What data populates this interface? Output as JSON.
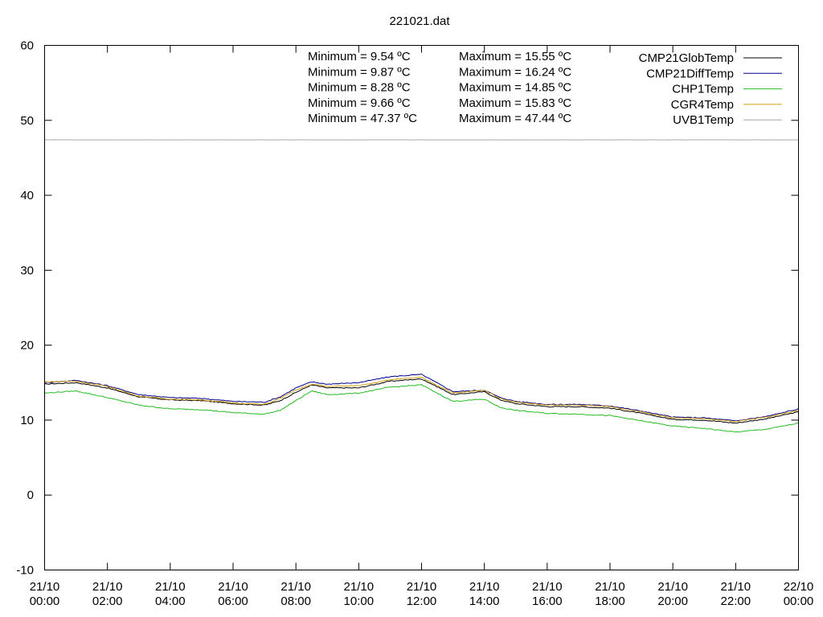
{
  "chart_data": {
    "type": "line",
    "title": "221021.dat",
    "xlabel": "",
    "ylabel": "",
    "ylim": [
      -10,
      60
    ],
    "yticks": [
      -10,
      0,
      10,
      20,
      30,
      40,
      50,
      60
    ],
    "xlim": [
      "21/10 00:00",
      "22/10 00:00"
    ],
    "xticks": [
      {
        "h": 0,
        "top": "21/10",
        "bottom": "00:00"
      },
      {
        "h": 2,
        "top": "21/10",
        "bottom": "02:00"
      },
      {
        "h": 4,
        "top": "21/10",
        "bottom": "04:00"
      },
      {
        "h": 6,
        "top": "21/10",
        "bottom": "06:00"
      },
      {
        "h": 8,
        "top": "21/10",
        "bottom": "08:00"
      },
      {
        "h": 10,
        "top": "21/10",
        "bottom": "10:00"
      },
      {
        "h": 12,
        "top": "21/10",
        "bottom": "12:00"
      },
      {
        "h": 14,
        "top": "21/10",
        "bottom": "14:00"
      },
      {
        "h": 16,
        "top": "21/10",
        "bottom": "16:00"
      },
      {
        "h": 18,
        "top": "21/10",
        "bottom": "18:00"
      },
      {
        "h": 20,
        "top": "21/10",
        "bottom": "20:00"
      },
      {
        "h": 22,
        "top": "21/10",
        "bottom": "22:00"
      },
      {
        "h": 24,
        "top": "22/10",
        "bottom": "00:00"
      }
    ],
    "grid": false,
    "legend_position": "top-right",
    "x": [
      0,
      1,
      2,
      3,
      4,
      5,
      6,
      7,
      7.5,
      8,
      8.5,
      9,
      10,
      11,
      12,
      13,
      14,
      14.5,
      15,
      16,
      17,
      18,
      19,
      20,
      21,
      22,
      23,
      24
    ],
    "series": [
      {
        "name": "CMP21GlobTemp",
        "color": "#000000",
        "values": [
          14.8,
          15.0,
          14.3,
          13.1,
          12.7,
          12.6,
          12.2,
          12.0,
          12.6,
          13.7,
          14.7,
          14.3,
          14.3,
          15.2,
          15.5,
          13.4,
          13.8,
          12.7,
          12.2,
          11.8,
          11.8,
          11.6,
          10.9,
          10.1,
          10.0,
          9.6,
          10.2,
          11.1
        ]
      },
      {
        "name": "CMP21DiffTemp",
        "color": "#00008b",
        "values": [
          15.0,
          15.3,
          14.6,
          13.4,
          13.0,
          12.9,
          12.5,
          12.4,
          13.1,
          14.3,
          15.1,
          14.8,
          15.0,
          15.8,
          16.1,
          13.8,
          14.0,
          13.0,
          12.5,
          12.1,
          12.1,
          11.9,
          11.2,
          10.4,
          10.3,
          9.9,
          10.5,
          11.5
        ]
      },
      {
        "name": "CHP1Temp",
        "color": "#22bb22",
        "values": [
          13.6,
          13.9,
          13.0,
          12.0,
          11.5,
          11.4,
          11.0,
          10.8,
          11.3,
          12.6,
          13.9,
          13.4,
          13.6,
          14.4,
          14.7,
          12.5,
          12.8,
          11.7,
          11.3,
          10.9,
          10.8,
          10.6,
          9.9,
          9.2,
          8.9,
          8.4,
          8.8,
          9.6
        ]
      },
      {
        "name": "CGR4Temp",
        "color": "#d4a017",
        "values": [
          15.1,
          15.2,
          14.5,
          13.2,
          12.8,
          12.7,
          12.3,
          12.1,
          12.9,
          14.0,
          14.8,
          14.5,
          14.6,
          15.4,
          15.7,
          13.6,
          14.0,
          12.9,
          12.4,
          12.0,
          12.0,
          11.8,
          11.1,
          10.3,
          10.2,
          9.8,
          10.4,
          11.3
        ]
      },
      {
        "name": "UVB1Temp",
        "color": "#aaaaaa",
        "values": [
          47.4,
          47.4,
          47.4,
          47.4,
          47.4,
          47.4,
          47.4,
          47.4,
          47.4,
          47.4,
          47.4,
          47.4,
          47.4,
          47.4,
          47.4,
          47.4,
          47.4,
          47.4,
          47.4,
          47.4,
          47.4,
          47.4,
          47.4,
          47.4,
          47.4,
          47.4,
          47.4,
          47.4
        ]
      }
    ],
    "annotations": [
      {
        "min": "Minimum = 9.54 ºC",
        "max": "Maximum = 15.55 ºC"
      },
      {
        "min": "Minimum = 9.87 ºC",
        "max": "Maximum = 16.24 ºC"
      },
      {
        "min": "Minimum = 8.28 ºC",
        "max": "Maximum = 14.85 ºC"
      },
      {
        "min": "Minimum = 9.66 ºC",
        "max": "Maximum = 15.83 ºC"
      },
      {
        "min": "Minimum = 47.37 ºC",
        "max": "Maximum = 47.44 ºC"
      }
    ]
  }
}
